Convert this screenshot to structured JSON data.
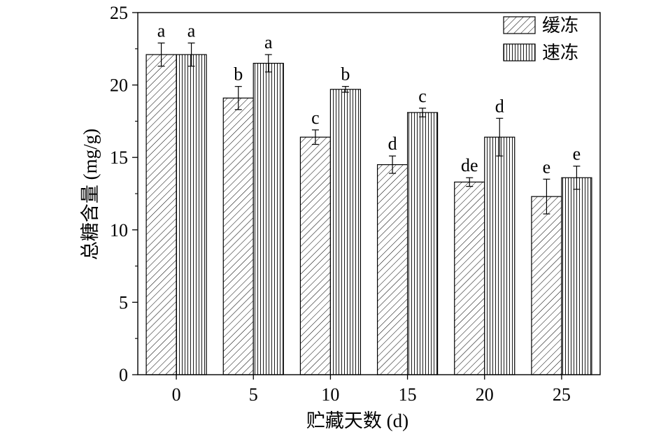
{
  "chart_data": {
    "type": "bar",
    "title": "",
    "xlabel": "贮藏天数 (d)",
    "ylabel": "总糖含量 (mg/g)",
    "categories": [
      "0",
      "5",
      "10",
      "15",
      "20",
      "25"
    ],
    "ylim": [
      0,
      25
    ],
    "yticks": [
      "0",
      "5",
      "10",
      "15",
      "20",
      "25"
    ],
    "legend_position": "top-right",
    "grid": false,
    "series": [
      {
        "name": "缓冻",
        "pattern": "diagonal-hatch",
        "values": [
          22.1,
          19.1,
          16.4,
          14.5,
          13.3,
          12.3
        ],
        "errors": [
          0.8,
          0.8,
          0.5,
          0.6,
          0.3,
          1.2
        ],
        "labels": [
          "a",
          "b",
          "c",
          "d",
          "de",
          "e"
        ]
      },
      {
        "name": "速冻",
        "pattern": "vertical-hatch",
        "values": [
          22.1,
          21.5,
          19.7,
          18.1,
          16.4,
          13.6
        ],
        "errors": [
          0.8,
          0.6,
          0.2,
          0.3,
          1.3,
          0.8
        ],
        "labels": [
          "a",
          "a",
          "b",
          "c",
          "d",
          "e"
        ]
      }
    ]
  }
}
